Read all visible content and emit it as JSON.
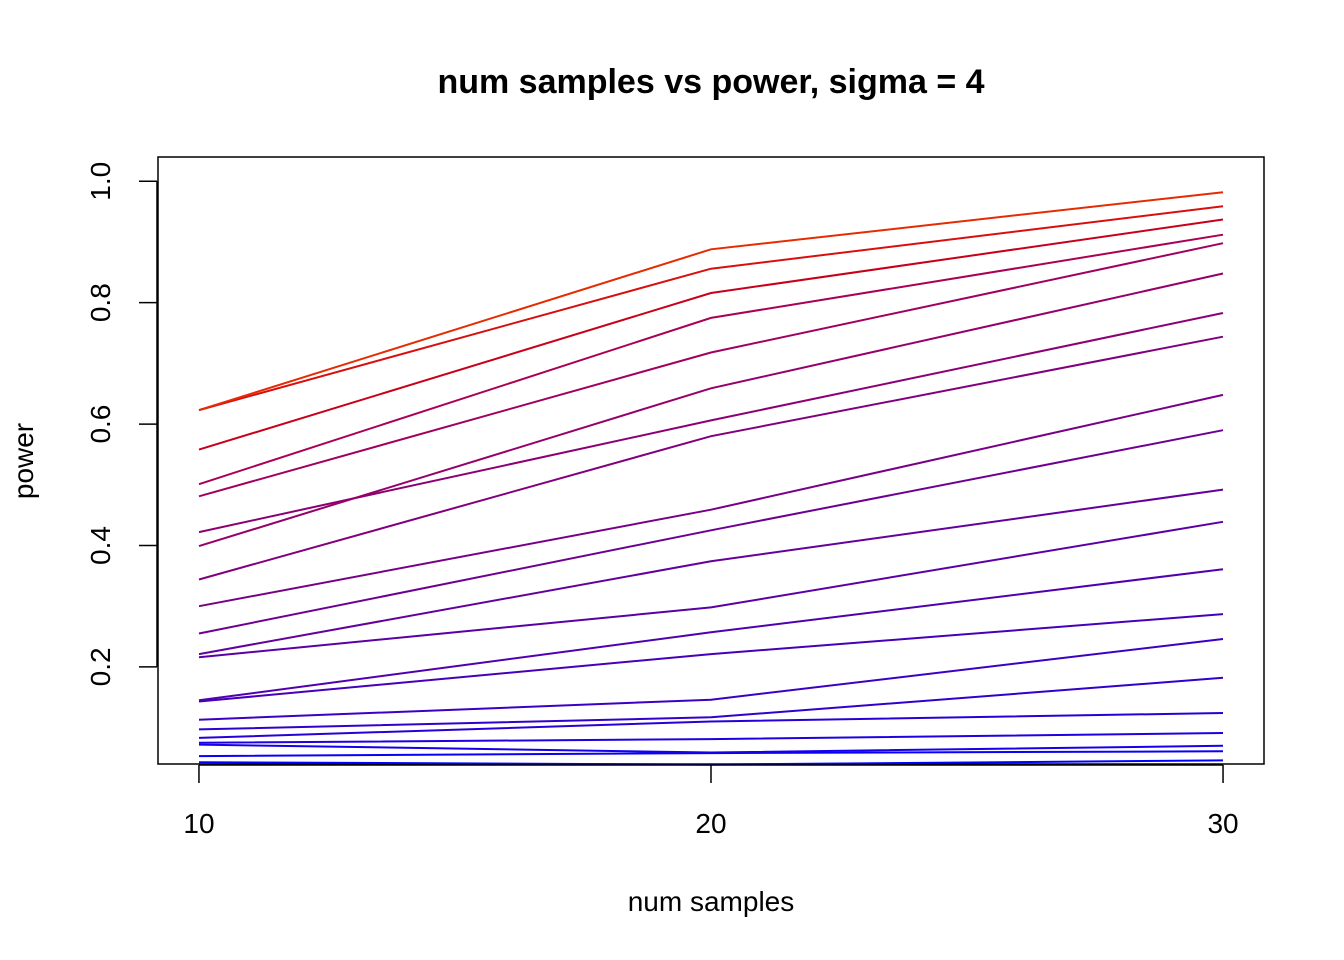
{
  "chart_data": {
    "type": "line",
    "title": "num samples vs power, sigma = 4",
    "xlabel": "num samples",
    "ylabel": "power",
    "x": [
      10,
      20,
      30
    ],
    "xlim": [
      9.2,
      30.8
    ],
    "ylim": [
      0.04,
      1.04
    ],
    "xticks": [
      "10",
      "20",
      "30"
    ],
    "yticks": [
      "0.2",
      "0.4",
      "0.6",
      "0.8",
      "1.0"
    ],
    "grid": false,
    "series": [
      {
        "color": "#0000ff",
        "values": [
          0.043,
          0.039,
          0.046
        ]
      },
      {
        "color": "#0a00f5",
        "values": [
          0.053,
          0.058,
          0.061
        ]
      },
      {
        "color": "#1400eb",
        "values": [
          0.072,
          0.059,
          0.07
        ]
      },
      {
        "color": "#1e00e1",
        "values": [
          0.075,
          0.081,
          0.091
        ]
      },
      {
        "color": "#2800d7",
        "values": [
          0.083,
          0.11,
          0.124
        ]
      },
      {
        "color": "#3200cd",
        "values": [
          0.097,
          0.117,
          0.182
        ]
      },
      {
        "color": "#3c00c3",
        "values": [
          0.113,
          0.146,
          0.246
        ]
      },
      {
        "color": "#4600b9",
        "values": [
          0.143,
          0.221,
          0.287
        ]
      },
      {
        "color": "#5000af",
        "values": [
          0.145,
          0.257,
          0.361
        ]
      },
      {
        "color": "#5a00a5",
        "values": [
          0.216,
          0.298,
          0.439
        ]
      },
      {
        "color": "#64009b",
        "values": [
          0.221,
          0.374,
          0.492
        ]
      },
      {
        "color": "#6e0091",
        "values": [
          0.255,
          0.425,
          0.59
        ]
      },
      {
        "color": "#780087",
        "values": [
          0.3,
          0.459,
          0.648
        ]
      },
      {
        "color": "#82007d",
        "values": [
          0.344,
          0.58,
          0.744
        ]
      },
      {
        "color": "#8c0073",
        "values": [
          0.422,
          0.606,
          0.783
        ]
      },
      {
        "color": "#960069",
        "values": [
          0.399,
          0.659,
          0.848
        ]
      },
      {
        "color": "#a0005f",
        "values": [
          0.481,
          0.718,
          0.898
        ]
      },
      {
        "color": "#aa0055",
        "values": [
          0.501,
          0.775,
          0.912
        ]
      },
      {
        "color": "#c8001a",
        "values": [
          0.558,
          0.816,
          0.937
        ]
      },
      {
        "color": "#d80f0f",
        "values": [
          0.623,
          0.856,
          0.959
        ]
      },
      {
        "color": "#e52b00",
        "values": [
          0.623,
          0.888,
          0.982
        ]
      }
    ]
  }
}
